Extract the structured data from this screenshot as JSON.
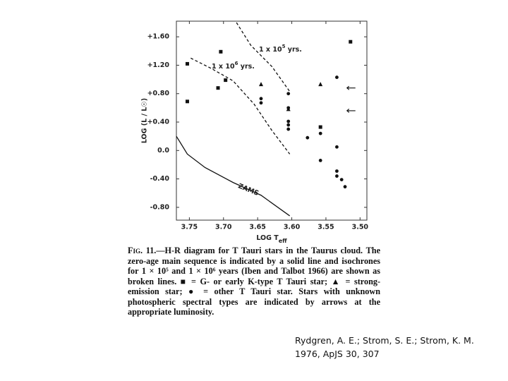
{
  "chart_data": {
    "type": "scatter",
    "xlabel": "LOG T",
    "xlabel_sub": "eff",
    "ylabel": "LOG (L / L☉)",
    "xlim": [
      3.769,
      3.49
    ],
    "ylim": [
      -0.98,
      1.82
    ],
    "xticks": [
      3.75,
      {
        "value": 3.7,
        "label": "3.70"
      },
      3.65,
      {
        "value": 3.6,
        "label": "3.60"
      },
      3.55,
      {
        "value": 3.5,
        "label": "3.50"
      }
    ],
    "yticks": [
      {
        "value": 1.6,
        "label": "+1.60"
      },
      {
        "value": 1.2,
        "label": "+1.20"
      },
      {
        "value": 0.8,
        "label": "+0.80"
      },
      {
        "value": 0.4,
        "label": "+0.40"
      },
      {
        "value": 0,
        "label": "0.0"
      },
      {
        "value": -0.4,
        "label": "-0.40"
      },
      {
        "value": -0.8,
        "label": "-0.80"
      }
    ],
    "color": "#111111",
    "series": [
      {
        "marker": "square",
        "x": [
          3.753,
          3.753,
          3.704,
          3.708,
          3.697,
          3.558,
          3.514
        ],
        "values": [
          1.22,
          0.69,
          1.39,
          0.88,
          0.99,
          0.33,
          1.53
        ]
      },
      {
        "marker": "triangle",
        "x": [
          3.645,
          3.605,
          3.558
        ],
        "values": [
          0.93,
          0.58,
          0.93
        ]
      },
      {
        "marker": "circle",
        "x": [
          3.645,
          3.645,
          3.605,
          3.605,
          3.605,
          3.605,
          3.605,
          3.577,
          3.558,
          3.558,
          3.534,
          3.534,
          3.534,
          3.534,
          3.527,
          3.522
        ],
        "values": [
          0.73,
          0.67,
          0.8,
          0.6,
          0.41,
          0.36,
          0.3,
          0.18,
          0.24,
          -0.14,
          1.03,
          0.05,
          -0.29,
          -0.36,
          -0.41,
          -0.51
        ]
      },
      {
        "marker": "arrow",
        "x": [
          3.513,
          3.513
        ],
        "values": [
          0.88,
          0.56
        ]
      }
    ],
    "curves": [
      {
        "dashed": false,
        "x": [
          3.769,
          3.753,
          3.727,
          3.686,
          3.645,
          3.603
        ],
        "values": [
          0.2,
          -0.05,
          -0.24,
          -0.45,
          -0.63,
          -0.92
        ]
      },
      {
        "dashed": true,
        "x": [
          3.748,
          3.717,
          3.686,
          3.655,
          3.629,
          3.603
        ],
        "values": [
          1.3,
          1.15,
          0.98,
          0.65,
          0.28,
          -0.05
        ]
      },
      {
        "dashed": true,
        "x": [
          3.681,
          3.66,
          3.629,
          3.603
        ],
        "values": [
          1.8,
          1.48,
          1.18,
          0.83
        ]
      }
    ],
    "annotations": [
      {
        "text": "1 x 10",
        "sup": "5",
        "after": " yrs."
      },
      {
        "text": "1 x 10",
        "sup": "6",
        "after": " yrs."
      },
      {
        "text": "ZAMS"
      }
    ]
  },
  "caption": {
    "label": "Fig. 11.",
    "text": "—H-R diagram for T Tauri stars in the Taurus cloud. The zero-age main sequence is indicated by a solid line and isochrones for 1 × 10⁵ and 1 × 10⁶ years (Iben and Talbot 1966) are shown as broken lines. ■ = G- or early K-type T Tauri star; ▲ = strong-emission star; ● = other T Tauri star. Stars with unknown photospheric spectral types are indicated by arrows at the appropriate luminosity."
  },
  "citation": {
    "authors": "Rydgren, A. E.; Strom, S. E.; Strom, K. M.",
    "reference": "1976, ApJS 30, 307"
  }
}
